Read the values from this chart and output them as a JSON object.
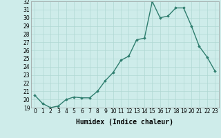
{
  "x": [
    0,
    1,
    2,
    3,
    4,
    5,
    6,
    7,
    8,
    9,
    10,
    11,
    12,
    13,
    14,
    15,
    16,
    17,
    18,
    19,
    20,
    21,
    22,
    23
  ],
  "y": [
    20.5,
    19.5,
    19.0,
    19.2,
    20.0,
    20.3,
    20.2,
    20.2,
    21.0,
    22.3,
    23.3,
    24.8,
    25.3,
    27.3,
    27.5,
    32.0,
    30.0,
    30.2,
    31.2,
    31.2,
    29.0,
    26.5,
    25.2,
    23.5
  ],
  "xlabel": "Humidex (Indice chaleur)",
  "ylim": [
    19,
    32
  ],
  "xlim": [
    -0.5,
    23.5
  ],
  "yticks": [
    19,
    20,
    21,
    22,
    23,
    24,
    25,
    26,
    27,
    28,
    29,
    30,
    31,
    32
  ],
  "xticks": [
    0,
    1,
    2,
    3,
    4,
    5,
    6,
    7,
    8,
    9,
    10,
    11,
    12,
    13,
    14,
    15,
    16,
    17,
    18,
    19,
    20,
    21,
    22,
    23
  ],
  "line_color": "#2e7d6e",
  "marker": "D",
  "marker_size": 1.8,
  "line_width": 1.0,
  "bg_color": "#ceecea",
  "grid_color": "#b0d8d4",
  "xlabel_fontsize": 7,
  "tick_fontsize": 5.5
}
